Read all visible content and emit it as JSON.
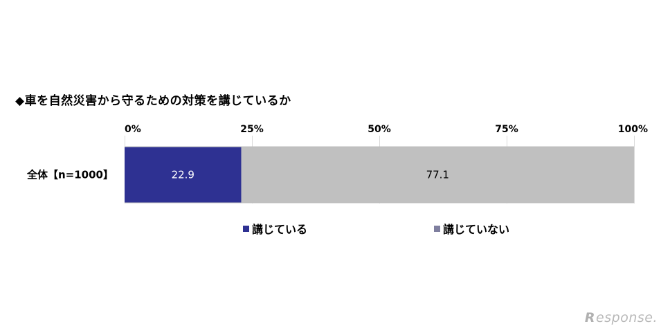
{
  "chart_data": {
    "type": "bar",
    "orientation": "horizontal",
    "stacked": true,
    "title": "◆車を自然災害から守るための対策を講じているか",
    "categories": [
      "全体【n=1000】"
    ],
    "series": [
      {
        "name": "講じている",
        "values": [
          22.9
        ],
        "color": "#2e3192",
        "label_color": "#ffffff"
      },
      {
        "name": "講じていない",
        "values": [
          77.1
        ],
        "color": "#c0c0c0",
        "label_color": "#000000"
      }
    ],
    "xlim": [
      0,
      100
    ],
    "x_ticks": [
      0,
      25,
      50,
      75,
      100
    ],
    "x_tick_labels": [
      "0%",
      "25%",
      "50%",
      "75%",
      "100%"
    ],
    "x_tick_position": "top",
    "grid": true,
    "legend_position": "bottom"
  },
  "legend": {
    "swatch_colors": [
      "#2e3192",
      "#7f7f9f"
    ]
  },
  "watermark": {
    "mark": "R",
    "text": "esponse."
  }
}
